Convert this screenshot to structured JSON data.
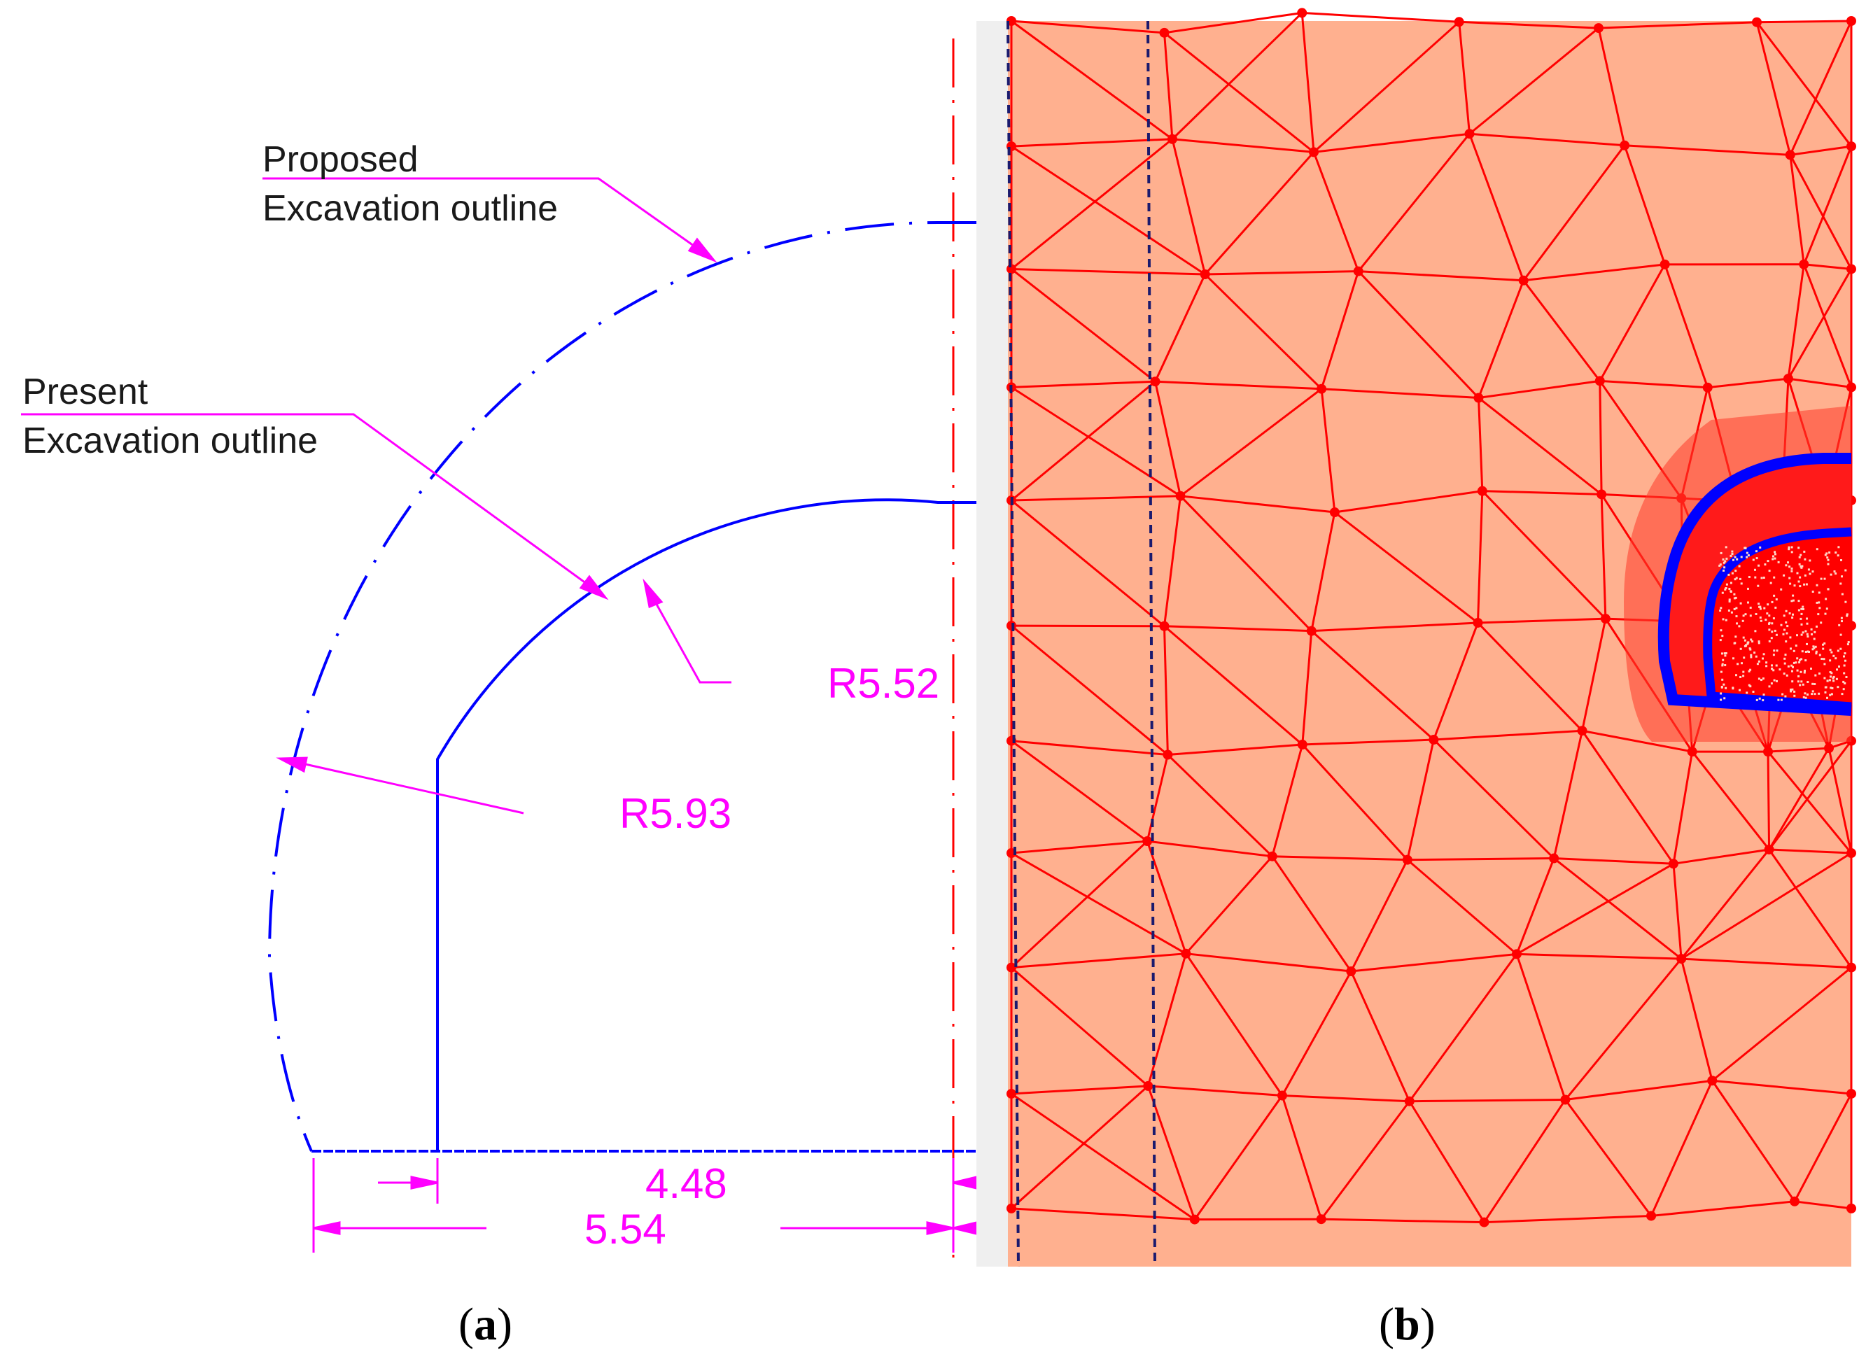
{
  "panel_a": {
    "label": {
      "open": "(",
      "letter": "a",
      "close": ")"
    },
    "callouts": {
      "proposed": {
        "line1": "Proposed",
        "line2": "Excavation outline"
      },
      "present": {
        "line1": "Present",
        "line2": "Excavation outline"
      }
    },
    "dimensions": {
      "radius_present": "R5.52",
      "radius_proposed": "R5.93",
      "half_width_present": "4.48",
      "half_width_proposed": "5.54"
    },
    "colors": {
      "outline": "#0000ff",
      "annotation": "#ff00ff",
      "centerline": "#ff0000"
    }
  },
  "panel_b": {
    "label": {
      "open": "(",
      "letter": "b",
      "close": ")"
    },
    "colors": {
      "background": "#ffb08f",
      "mesh": "#ff0000",
      "boundary": "#0000ff",
      "dashed": "#1a1a6e"
    }
  }
}
